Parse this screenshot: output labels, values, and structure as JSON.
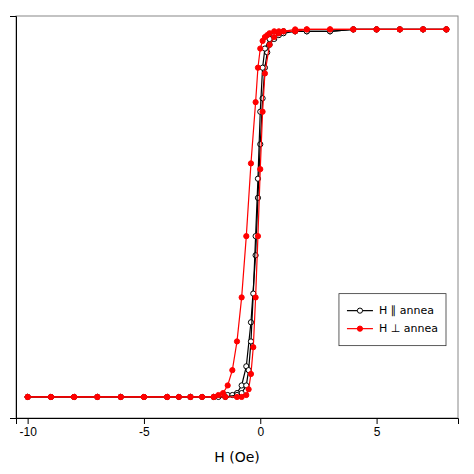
{
  "chart_data": {
    "type": "line",
    "x_label": "H (Oe)",
    "xlim": [
      -10.5,
      8.5
    ],
    "ylim": [
      -1.05,
      1.05
    ],
    "xticks": [
      -10,
      -5,
      0,
      5
    ],
    "yticks": [],
    "tick_labels": "x",
    "legend": "lower right",
    "series": [
      {
        "name": "H ∥ annea",
        "color": "black",
        "marker": "open-circle",
        "x": [
          -10.0,
          -9.0,
          -8.0,
          -7.0,
          -6.0,
          -5.0,
          -4.0,
          -3.5,
          -3.0,
          -2.5,
          -2.0,
          -1.8,
          -1.6,
          -1.4,
          -1.2,
          -1.0,
          -0.8,
          -0.6,
          -0.4,
          -0.2,
          -0.1,
          0.0,
          0.1,
          0.2,
          0.3,
          0.4,
          0.6,
          0.8,
          1.0,
          1.5,
          2.0,
          3.0,
          4.0,
          5.0,
          6.0,
          7.0,
          8.0
        ],
        "values": [
          -0.94,
          -0.94,
          -0.94,
          -0.94,
          -0.94,
          -0.94,
          -0.94,
          -0.94,
          -0.94,
          -0.94,
          -0.94,
          -0.94,
          -0.93,
          -0.93,
          -0.93,
          -0.92,
          -0.88,
          -0.78,
          -0.55,
          -0.2,
          0.1,
          0.38,
          0.62,
          0.78,
          0.86,
          0.9,
          0.93,
          0.95,
          0.96,
          0.97,
          0.97,
          0.97,
          0.98,
          0.98,
          0.98,
          0.98,
          0.98
        ]
      },
      {
        "color": "black",
        "marker": "open-circle",
        "x": [
          8.0,
          7.0,
          6.0,
          5.0,
          4.0,
          3.0,
          2.0,
          1.5,
          1.0,
          0.8,
          0.6,
          0.4,
          0.2,
          0.1,
          0.0,
          -0.1,
          -0.2,
          -0.3,
          -0.4,
          -0.5,
          -0.6,
          -0.8,
          -1.0,
          -1.5,
          -2.0,
          -3.0,
          -4.0,
          -5.0,
          -6.0,
          -7.0,
          -8.0,
          -9.0,
          -10.0
        ],
        "values": [
          0.98,
          0.98,
          0.98,
          0.98,
          0.98,
          0.97,
          0.97,
          0.97,
          0.97,
          0.96,
          0.95,
          0.93,
          0.88,
          0.78,
          0.55,
          0.2,
          -0.1,
          -0.4,
          -0.65,
          -0.8,
          -0.88,
          -0.92,
          -0.93,
          -0.94,
          -0.94,
          -0.94,
          -0.94,
          -0.94,
          -0.94,
          -0.94,
          -0.94,
          -0.94,
          -0.94
        ]
      },
      {
        "name": "H ⊥ annea",
        "color": "red",
        "marker": "circle",
        "x": [
          -10.0,
          -9.0,
          -8.0,
          -7.0,
          -6.0,
          -5.0,
          -4.0,
          -3.5,
          -3.0,
          -2.5,
          -2.0,
          -1.8,
          -1.6,
          -1.4,
          -1.2,
          -1.0,
          -0.8,
          -0.6,
          -0.4,
          -0.2,
          -0.1,
          0.0,
          0.1,
          0.2,
          0.3,
          0.4,
          0.6,
          0.8,
          1.0,
          1.5,
          2.0,
          3.0,
          4.0,
          5.0,
          6.0,
          7.0,
          8.0
        ],
        "values": [
          -0.94,
          -0.94,
          -0.94,
          -0.94,
          -0.94,
          -0.94,
          -0.94,
          -0.94,
          -0.94,
          -0.94,
          -0.94,
          -0.93,
          -0.92,
          -0.88,
          -0.8,
          -0.65,
          -0.42,
          -0.1,
          0.28,
          0.6,
          0.78,
          0.88,
          0.92,
          0.94,
          0.95,
          0.96,
          0.97,
          0.97,
          0.97,
          0.98,
          0.98,
          0.98,
          0.98,
          0.98,
          0.98,
          0.98,
          0.98
        ]
      },
      {
        "color": "red",
        "marker": "circle",
        "x": [
          8.0,
          7.0,
          6.0,
          5.0,
          4.0,
          3.0,
          2.0,
          1.5,
          1.0,
          0.8,
          0.6,
          0.4,
          0.2,
          0.1,
          0.0,
          -0.1,
          -0.2,
          -0.3,
          -0.4,
          -0.5,
          -0.6,
          -0.8,
          -1.0,
          -1.5,
          -2.0,
          -3.0,
          -4.0,
          -5.0,
          -6.0,
          -7.0,
          -8.0,
          -9.0,
          -10.0
        ],
        "values": [
          0.98,
          0.98,
          0.98,
          0.98,
          0.98,
          0.98,
          0.98,
          0.97,
          0.97,
          0.96,
          0.94,
          0.9,
          0.75,
          0.55,
          0.25,
          -0.1,
          -0.42,
          -0.68,
          -0.82,
          -0.9,
          -0.93,
          -0.94,
          -0.94,
          -0.94,
          -0.94,
          -0.94,
          -0.94,
          -0.94,
          -0.94,
          -0.94,
          -0.94,
          -0.94,
          -0.94
        ]
      }
    ]
  }
}
